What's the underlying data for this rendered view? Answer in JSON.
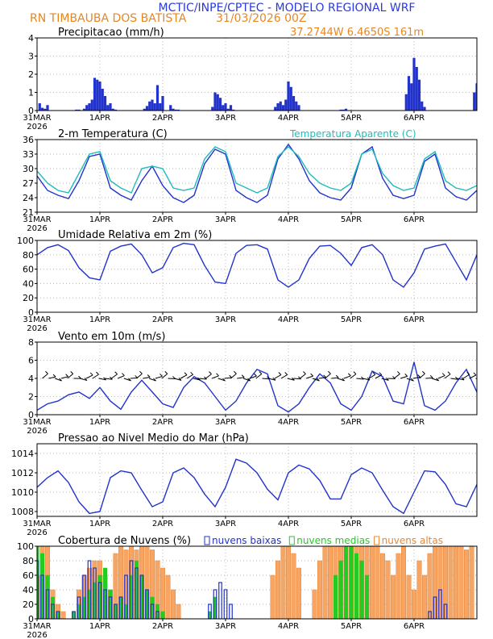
{
  "header": {
    "title": "MCTIC/INPE/CPTEC - MODELO REGIONAL WRF",
    "location": "RN TIMBAUBA DOS BATISTA",
    "run": "31/03/2026 00Z",
    "coords": "37.2744W 6.4650S 161m"
  },
  "colors": {
    "title": "#2b3bd8",
    "header_orange": "#e8861f",
    "blue": "#2233cc",
    "cyan": "#22bbbb",
    "orange_fill": "#f7a565",
    "orange_edge": "#e98732",
    "green": "#22cc22",
    "grid": "#b8b8b8"
  },
  "x_axis": {
    "domain_hours": [
      0,
      168
    ],
    "ticks": [
      {
        "hour": 0,
        "label": "31MAR",
        "sub": "2026"
      },
      {
        "hour": 24,
        "label": "1APR"
      },
      {
        "hour": 48,
        "label": "2APR"
      },
      {
        "hour": 72,
        "label": "3APR"
      },
      {
        "hour": 96,
        "label": "4APR"
      },
      {
        "hour": 120,
        "label": "5APR"
      },
      {
        "hour": 144,
        "label": "6APR"
      }
    ]
  },
  "chart_data": [
    {
      "id": "precip",
      "type": "bar",
      "title": "Precipitacao (mm/h)",
      "ylim": [
        0,
        4
      ],
      "yticks": [
        0,
        1,
        2,
        3,
        4
      ],
      "x_hours": [
        1,
        2,
        3,
        4,
        15,
        16,
        18,
        19,
        20,
        21,
        22,
        23,
        24,
        25,
        26,
        27,
        28,
        29,
        30,
        41,
        42,
        43,
        44,
        45,
        46,
        47,
        48,
        51,
        52,
        53,
        54,
        67,
        68,
        69,
        70,
        71,
        72,
        73,
        74,
        75,
        91,
        92,
        93,
        94,
        95,
        96,
        97,
        98,
        99,
        100,
        116,
        117,
        118,
        141,
        142,
        143,
        144,
        145,
        146,
        147,
        148,
        167,
        168
      ],
      "values": [
        0.4,
        0.15,
        0.1,
        0.3,
        0.05,
        0.05,
        0.1,
        0.3,
        0.4,
        0.6,
        1.8,
        1.7,
        1.6,
        1.2,
        0.8,
        0.3,
        0.4,
        0.1,
        0.05,
        0.1,
        0.25,
        0.5,
        0.6,
        0.4,
        1.4,
        0.4,
        0.8,
        0.3,
        0.1,
        0.05,
        0.05,
        0.2,
        1.0,
        0.9,
        0.7,
        0.3,
        0.4,
        0.1,
        0.3,
        0.05,
        0.2,
        0.4,
        0.5,
        0.3,
        0.6,
        1.6,
        1.3,
        0.8,
        0.5,
        0.3,
        0.05,
        0.05,
        0.1,
        0.9,
        1.9,
        1.5,
        2.9,
        2.4,
        1.7,
        0.5,
        0.2,
        1.0,
        1.5
      ]
    },
    {
      "id": "temperature",
      "type": "line",
      "title": "2-m Temperatura (C)",
      "ylim": [
        21,
        36
      ],
      "yticks": [
        21,
        24,
        27,
        30,
        33,
        36
      ],
      "series": [
        {
          "name": "2-m Temperatura (C)",
          "x": [
            0,
            4,
            8,
            12,
            16,
            20,
            24,
            28,
            32,
            36,
            40,
            44,
            48,
            52,
            56,
            60,
            64,
            68,
            72,
            76,
            80,
            84,
            88,
            92,
            96,
            100,
            104,
            108,
            112,
            116,
            120,
            124,
            128,
            132,
            136,
            140,
            144,
            148,
            152,
            156,
            160,
            164,
            168
          ],
          "values": [
            28.5,
            25.5,
            24.5,
            23.8,
            27.5,
            32.5,
            33,
            26,
            24.5,
            23.5,
            27.5,
            30.5,
            26.5,
            24,
            23,
            24.5,
            31,
            34,
            33,
            25.5,
            24,
            23,
            24.5,
            32,
            35,
            32,
            27.5,
            25,
            24,
            23.5,
            26,
            33,
            34.5,
            28,
            24.5,
            23.8,
            24.5,
            31.5,
            33,
            26,
            24.2,
            23.5,
            25.5
          ]
        },
        {
          "name": "Temperatura Aparente (C)",
          "x": [
            0,
            4,
            8,
            12,
            16,
            20,
            24,
            28,
            32,
            36,
            40,
            44,
            48,
            52,
            56,
            60,
            64,
            68,
            72,
            76,
            80,
            84,
            88,
            92,
            96,
            100,
            104,
            108,
            112,
            116,
            120,
            124,
            128,
            132,
            136,
            140,
            144,
            148,
            152,
            156,
            160,
            164,
            168
          ],
          "values": [
            29.5,
            27,
            25.5,
            25,
            29,
            33,
            33.5,
            27.5,
            26,
            25,
            30,
            30.5,
            30,
            26,
            25.5,
            26,
            32,
            34.5,
            33.5,
            27,
            26,
            25,
            26,
            32.5,
            34.5,
            32.5,
            29,
            27,
            26,
            25.5,
            27,
            33,
            34,
            29,
            26.5,
            25.5,
            26,
            32,
            33.5,
            27.5,
            26,
            25.5,
            26.5
          ]
        }
      ]
    },
    {
      "id": "humidity",
      "type": "line",
      "title": "Umidade Relativa em 2m (%)",
      "ylim": [
        0,
        100
      ],
      "yticks": [
        0,
        20,
        40,
        60,
        80,
        100
      ],
      "x": [
        0,
        4,
        8,
        12,
        16,
        20,
        24,
        28,
        32,
        36,
        40,
        44,
        48,
        52,
        56,
        60,
        64,
        68,
        72,
        76,
        80,
        84,
        88,
        92,
        96,
        100,
        104,
        108,
        112,
        116,
        120,
        124,
        128,
        132,
        136,
        140,
        144,
        148,
        152,
        156,
        160,
        164,
        168
      ],
      "values": [
        80,
        90,
        94,
        86,
        62,
        48,
        45,
        85,
        92,
        95,
        80,
        55,
        62,
        90,
        96,
        94,
        65,
        42,
        40,
        82,
        93,
        94,
        88,
        45,
        35,
        45,
        75,
        92,
        93,
        82,
        65,
        90,
        94,
        80,
        45,
        35,
        55,
        88,
        92,
        95,
        70,
        45,
        80
      ]
    },
    {
      "id": "wind",
      "type": "line",
      "title": "Vento em 10m (m/s)",
      "ylim": [
        0,
        8
      ],
      "yticks": [
        0,
        2,
        4,
        6,
        8
      ],
      "x": [
        0,
        4,
        8,
        12,
        16,
        20,
        24,
        28,
        32,
        36,
        40,
        44,
        48,
        52,
        56,
        60,
        64,
        68,
        72,
        76,
        80,
        84,
        88,
        92,
        96,
        100,
        104,
        108,
        112,
        116,
        120,
        124,
        128,
        132,
        136,
        140,
        144,
        148,
        152,
        156,
        160,
        164,
        168
      ],
      "values": [
        0.5,
        1.2,
        1.5,
        2.2,
        2.5,
        1.8,
        3,
        1.5,
        0.6,
        2.5,
        3.8,
        2.5,
        1.2,
        0.8,
        3,
        4.2,
        3.5,
        2,
        0.5,
        1.5,
        3.5,
        5,
        4.5,
        1,
        0.3,
        1.2,
        3,
        4.5,
        3.5,
        1.2,
        0.5,
        2,
        4.8,
        4.2,
        1.5,
        1.2,
        5.8,
        1,
        0.5,
        1.5,
        3.5,
        5,
        2.5
      ]
    },
    {
      "id": "pressure",
      "type": "line",
      "title": "Pressao ao Nivel Medio do Mar (hPa)",
      "ylim": [
        1007.5,
        1015
      ],
      "yticks": [
        1008,
        1010,
        1012,
        1014
      ],
      "x": [
        0,
        4,
        8,
        12,
        16,
        20,
        24,
        28,
        32,
        36,
        40,
        44,
        48,
        52,
        56,
        60,
        64,
        68,
        72,
        76,
        80,
        84,
        88,
        92,
        96,
        100,
        104,
        108,
        112,
        116,
        120,
        124,
        128,
        132,
        136,
        140,
        144,
        148,
        152,
        156,
        160,
        164,
        168
      ],
      "values": [
        1010.5,
        1011.5,
        1012.2,
        1011,
        1009,
        1007.8,
        1008,
        1011.5,
        1012.2,
        1012,
        1010.2,
        1008.5,
        1009,
        1012,
        1012.5,
        1011.5,
        1009.8,
        1008.5,
        1010.5,
        1013.4,
        1013,
        1012,
        1010.3,
        1009.2,
        1012,
        1012.8,
        1012.4,
        1011.2,
        1009.3,
        1009.3,
        1011.8,
        1012.5,
        1012,
        1010.2,
        1008.5,
        1007.8,
        1010,
        1012.2,
        1012.1,
        1010.8,
        1008.8,
        1008.5,
        1010.8
      ]
    },
    {
      "id": "clouds",
      "type": "bar",
      "title": "Cobertura de Nuvens (%)",
      "ylim": [
        0,
        100
      ],
      "yticks": [
        0,
        20,
        40,
        60,
        80,
        100
      ],
      "legend": [
        "nuvens baixas",
        "nuvens medias",
        "nuvens altas"
      ],
      "x_hours": [
        0,
        2,
        4,
        6,
        8,
        10,
        12,
        14,
        16,
        18,
        20,
        22,
        24,
        26,
        28,
        30,
        32,
        34,
        36,
        38,
        40,
        42,
        44,
        46,
        48,
        50,
        52,
        54,
        56,
        58,
        60,
        62,
        64,
        66,
        68,
        70,
        72,
        74,
        76,
        78,
        80,
        82,
        84,
        86,
        88,
        90,
        92,
        94,
        96,
        98,
        100,
        102,
        104,
        106,
        108,
        110,
        112,
        114,
        116,
        118,
        120,
        122,
        124,
        126,
        128,
        130,
        132,
        134,
        136,
        138,
        140,
        142,
        144,
        146,
        148,
        150,
        152,
        154,
        156,
        158,
        160,
        162,
        164,
        166
      ],
      "series": [
        {
          "name": "nuvens altas",
          "values": [
            60,
            100,
            100,
            40,
            20,
            10,
            0,
            0,
            40,
            60,
            70,
            80,
            80,
            60,
            40,
            90,
            100,
            95,
            100,
            95,
            100,
            100,
            95,
            80,
            70,
            60,
            40,
            20,
            0,
            0,
            0,
            0,
            0,
            0,
            0,
            0,
            0,
            0,
            0,
            0,
            0,
            0,
            0,
            0,
            0,
            60,
            80,
            100,
            100,
            90,
            70,
            0,
            0,
            40,
            80,
            100,
            100,
            100,
            100,
            100,
            100,
            100,
            100,
            100,
            100,
            100,
            90,
            80,
            60,
            90,
            100,
            60,
            40,
            80,
            60,
            90,
            100,
            100,
            100,
            100,
            100,
            100,
            95,
            100
          ]
        },
        {
          "name": "nuvens medias",
          "values": [
            100,
            90,
            60,
            30,
            10,
            0,
            0,
            10,
            20,
            30,
            40,
            50,
            60,
            70,
            40,
            20,
            30,
            20,
            60,
            80,
            60,
            40,
            30,
            20,
            10,
            0,
            0,
            0,
            0,
            0,
            0,
            0,
            0,
            10,
            30,
            0,
            0,
            0,
            0,
            0,
            0,
            0,
            0,
            0,
            0,
            0,
            0,
            0,
            0,
            0,
            0,
            0,
            0,
            0,
            0,
            0,
            0,
            60,
            80,
            100,
            100,
            90,
            80,
            60,
            0,
            0,
            0,
            0,
            0,
            0,
            0,
            0,
            0,
            0,
            0,
            0,
            0,
            0,
            0,
            0,
            0,
            0,
            0,
            0
          ]
        },
        {
          "name": "nuvens baixas",
          "values": [
            80,
            60,
            40,
            20,
            10,
            0,
            0,
            10,
            30,
            60,
            80,
            70,
            50,
            40,
            30,
            20,
            30,
            60,
            80,
            70,
            60,
            40,
            20,
            10,
            0,
            0,
            0,
            0,
            0,
            0,
            0,
            0,
            0,
            20,
            40,
            50,
            40,
            20,
            0,
            0,
            0,
            0,
            0,
            0,
            0,
            0,
            0,
            0,
            0,
            0,
            0,
            0,
            0,
            0,
            0,
            0,
            0,
            0,
            0,
            0,
            0,
            0,
            0,
            0,
            0,
            0,
            0,
            0,
            0,
            0,
            0,
            0,
            0,
            0,
            0,
            10,
            30,
            40,
            20,
            0,
            0,
            0,
            0,
            0
          ]
        }
      ]
    }
  ]
}
